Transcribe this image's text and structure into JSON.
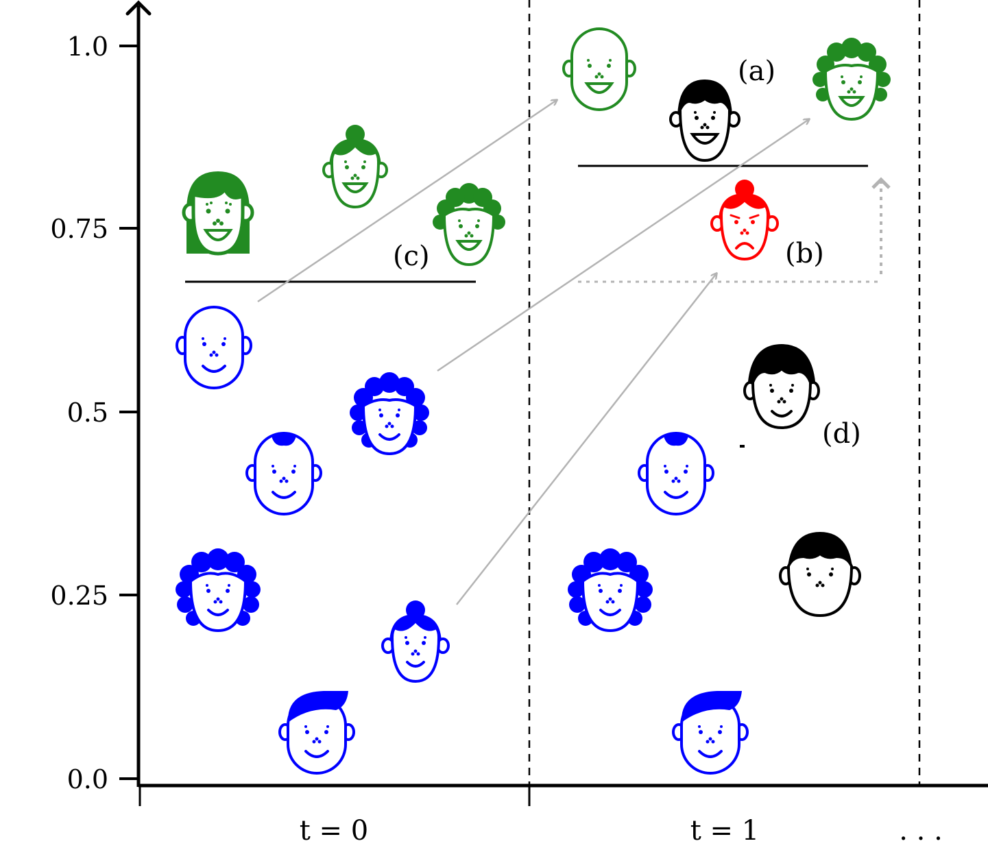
{
  "axis": {
    "y_ticks": [
      "0.0",
      "0.25",
      "0.5",
      "0.75",
      "1.0"
    ],
    "time_labels": [
      "t = 0",
      "t = 1"
    ],
    "ellipsis": ". . ."
  },
  "annotations": {
    "a": "(a)",
    "b": "(b)",
    "c": "(c)",
    "d": "(d)"
  },
  "colors": {
    "approved": "#228b22",
    "rejected_group": "#0000ff",
    "new_agent": "#000000",
    "negative": "#ff0000",
    "arrow": "#b3b3b3"
  },
  "chart_data": {
    "type": "scatter",
    "ylim": [
      0.0,
      1.0
    ],
    "yticks": [
      0.0,
      0.25,
      0.5,
      0.75,
      1.0
    ],
    "x": [
      "t = 0",
      "t = 1"
    ],
    "thresholds": [
      {
        "time": "t = 0",
        "value": 0.68
      },
      {
        "time": "t = 1",
        "value": 0.84
      }
    ],
    "agents": [
      {
        "id": "t0-long-hair",
        "time": "t = 0",
        "score": 0.77,
        "color": "green",
        "icon": "long-hair-face-icon"
      },
      {
        "id": "t0-bun",
        "time": "t = 0",
        "score": 0.83,
        "color": "green",
        "icon": "bun-hair-face-icon"
      },
      {
        "id": "t0-curly",
        "time": "t = 0",
        "score": 0.76,
        "color": "green",
        "icon": "curly-hair-face-icon"
      },
      {
        "id": "t0-bald",
        "time": "t = 0",
        "score": 0.59,
        "color": "blue",
        "icon": "bald-face-icon"
      },
      {
        "id": "t0-curly-blue",
        "time": "t = 0",
        "score": 0.52,
        "color": "blue",
        "icon": "curly-hair-face-icon"
      },
      {
        "id": "t0-tuft",
        "time": "t = 0",
        "score": 0.42,
        "color": "blue",
        "icon": "tuft-hair-face-icon"
      },
      {
        "id": "t0-wavy",
        "time": "t = 0",
        "score": 0.26,
        "color": "blue",
        "icon": "wavy-hair-face-icon"
      },
      {
        "id": "t0-bun-blue",
        "time": "t = 0",
        "score": 0.19,
        "color": "blue",
        "icon": "bun-hair-face-icon"
      },
      {
        "id": "t0-side",
        "time": "t = 0",
        "score": 0.07,
        "color": "blue",
        "icon": "side-hair-face-icon"
      },
      {
        "id": "t1-bald",
        "time": "t = 1",
        "score": 0.97,
        "color": "green",
        "icon": "bald-face-icon"
      },
      {
        "id": "t1-new-a",
        "time": "t = 1",
        "score": 0.91,
        "color": "black",
        "icon": "short-hair-face-icon"
      },
      {
        "id": "t1-curly",
        "time": "t = 1",
        "score": 0.95,
        "color": "green",
        "icon": "curly-hair-face-icon"
      },
      {
        "id": "t1-bun-red",
        "time": "t = 1",
        "score": 0.76,
        "color": "red",
        "icon": "sad-bun-face-icon"
      },
      {
        "id": "t1-new-d",
        "time": "t = 1",
        "score": 0.53,
        "color": "black",
        "icon": "short-hair-face-icon"
      },
      {
        "id": "t1-tuft",
        "time": "t = 1",
        "score": 0.42,
        "color": "blue",
        "icon": "tuft-hair-face-icon"
      },
      {
        "id": "t1-wavy",
        "time": "t = 1",
        "score": 0.26,
        "color": "blue",
        "icon": "wavy-hair-face-icon"
      },
      {
        "id": "t1-new-black",
        "time": "t = 1",
        "score": 0.28,
        "color": "black",
        "icon": "short-hair-face-icon"
      },
      {
        "id": "t1-side",
        "time": "t = 1",
        "score": 0.07,
        "color": "blue",
        "icon": "side-hair-face-icon"
      }
    ]
  }
}
